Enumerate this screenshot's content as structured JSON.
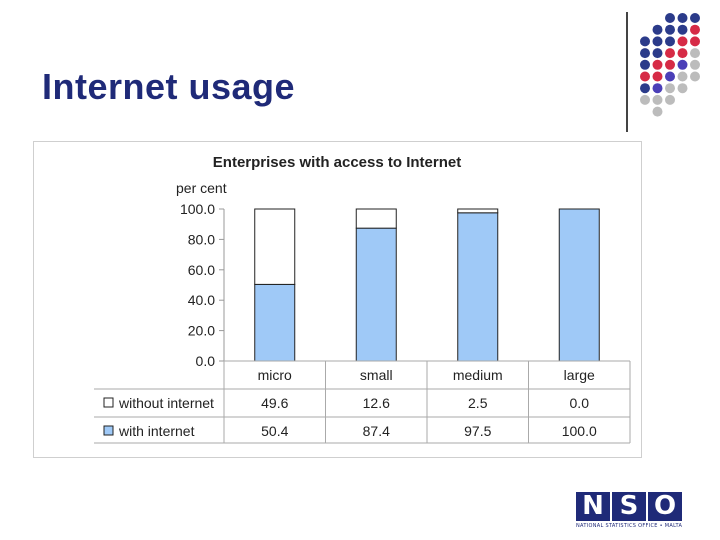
{
  "slide": {
    "title": "Internet usage",
    "logo_letters": [
      "N",
      "S",
      "O"
    ],
    "logo_caption": "NATIONAL STATISTICS OFFICE • MALTA"
  },
  "colors": {
    "title": "#1f2a78",
    "bar_with": "#9fc9f7",
    "bar_without": "#ffffff",
    "dot_navy": "#2b3b8a",
    "dot_red": "#d62b46",
    "dot_gray": "#bcbcbc",
    "dot_purple": "#4b3fb8"
  },
  "chart_data": {
    "type": "bar",
    "stacked": true,
    "title": "Enterprises with access to Internet",
    "ylabel": "per cent",
    "ylim": [
      0,
      100
    ],
    "yticks": [
      "0.0",
      "20.0",
      "40.0",
      "60.0",
      "80.0",
      "100.0"
    ],
    "categories": [
      "micro",
      "small",
      "medium",
      "large"
    ],
    "series": [
      {
        "name": "without internet",
        "values": [
          49.6,
          12.6,
          2.5,
          0.0
        ],
        "labels": [
          "49.6",
          "12.6",
          "2.5",
          "0.0"
        ]
      },
      {
        "name": "with internet",
        "values": [
          50.4,
          87.4,
          97.5,
          100.0
        ],
        "labels": [
          "50.4",
          "87.4",
          "97.5",
          "100.0"
        ]
      }
    ],
    "data_table": true
  }
}
